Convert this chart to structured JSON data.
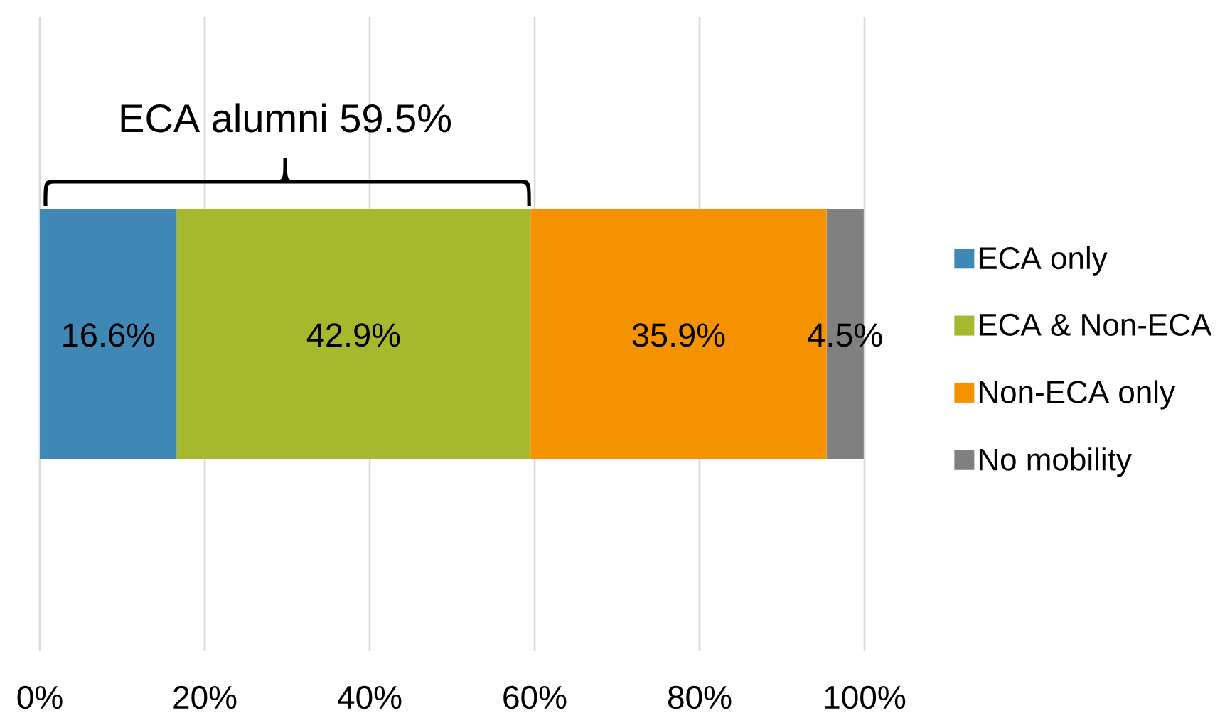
{
  "chart_data": {
    "type": "bar",
    "orientation": "horizontal",
    "stacked": true,
    "categories": [
      null
    ],
    "series": [
      {
        "name": "ECA only",
        "color": "#3f87b4",
        "values": [
          16.6
        ],
        "value_labels": [
          "16.6%"
        ]
      },
      {
        "name": "ECA & Non-ECA",
        "color": "#a6b82b",
        "values": [
          42.9
        ],
        "value_labels": [
          "42.9%"
        ]
      },
      {
        "name": "Non-ECA only",
        "color": "#f59200",
        "values": [
          35.9
        ],
        "value_labels": [
          "35.9%"
        ]
      },
      {
        "name": "No mobility",
        "color": "#808080",
        "values": [
          4.5
        ],
        "value_labels": [
          "4.5%"
        ]
      }
    ],
    "xlim": [
      0,
      100
    ],
    "xticks": [
      {
        "value": 0,
        "label": "0%"
      },
      {
        "value": 20,
        "label": "20%"
      },
      {
        "value": 40,
        "label": "40%"
      },
      {
        "value": 60,
        "label": "60%"
      },
      {
        "value": 80,
        "label": "80%"
      },
      {
        "value": 100,
        "label": "100%"
      }
    ],
    "grid": "x",
    "legend": "right",
    "tick_labels": "x",
    "annotations": [
      "ECA alumni 59.5%"
    ]
  }
}
